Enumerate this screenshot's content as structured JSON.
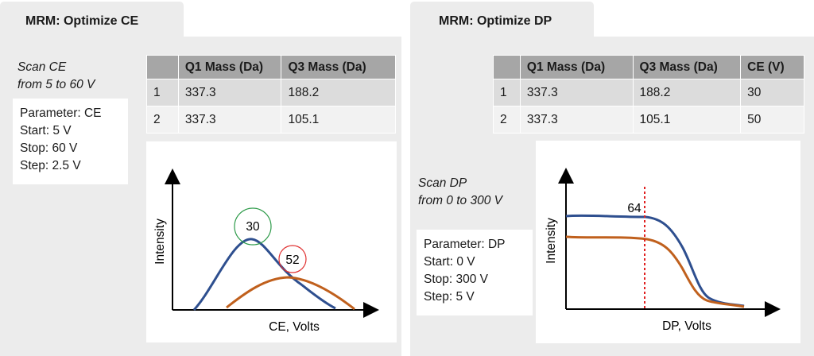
{
  "ce_panel": {
    "tab_title": "MRM: Optimize CE",
    "scan_line1": "Scan CE",
    "scan_line2": "from 5 to 60 V",
    "params": [
      "Parameter: CE",
      "Start: 5 V",
      "Stop: 60 V",
      "Step: 2.5 V"
    ],
    "table": {
      "headers": [
        "",
        "Q1 Mass (Da)",
        "Q3 Mass (Da)"
      ],
      "rows": [
        [
          "1",
          "337.3",
          "188.2"
        ],
        [
          "2",
          "337.3",
          "105.1"
        ]
      ]
    },
    "plot": {
      "y_label": "Intensity",
      "x_label": "CE, Volts",
      "peak1_label": "30",
      "peak2_label": "52",
      "colors": {
        "series1": "#2e4f8f",
        "series2": "#c0601d",
        "circle1": "#2e9b4a",
        "circle2": "#e03030"
      }
    }
  },
  "dp_panel": {
    "tab_title": "MRM: Optimize DP",
    "scan_line1": "Scan DP",
    "scan_line2": "from 0 to 300 V",
    "params": [
      "Parameter: DP",
      "Start: 0 V",
      "Stop: 300 V",
      "Step: 5 V"
    ],
    "table": {
      "headers": [
        "",
        "Q1 Mass (Da)",
        "Q3 Mass (Da)",
        "CE (V)"
      ],
      "rows": [
        [
          "1",
          "337.3",
          "188.2",
          "30"
        ],
        [
          "2",
          "337.3",
          "105.1",
          "50"
        ]
      ]
    },
    "plot": {
      "y_label": "Intensity",
      "x_label": "DP, Volts",
      "marker_label": "64",
      "colors": {
        "series1": "#2e4f8f",
        "series2": "#c0601d",
        "marker": "#e02020"
      }
    }
  }
}
